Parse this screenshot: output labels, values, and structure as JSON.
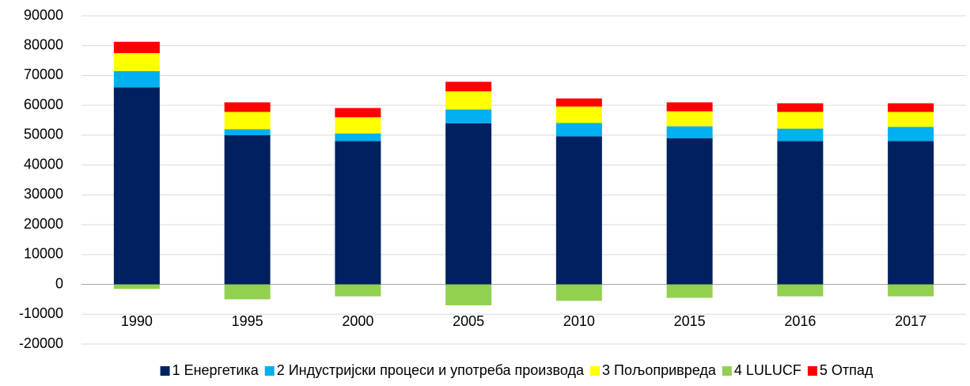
{
  "chart_data": {
    "type": "stacked_bar",
    "categories": [
      "1990",
      "1995",
      "2000",
      "2005",
      "2010",
      "2015",
      "2016",
      "2017"
    ],
    "series": [
      {
        "name": "1 Енергетика",
        "color": "#002060",
        "values": [
          66000,
          50000,
          48000,
          54000,
          49600,
          49000,
          48000,
          48000
        ]
      },
      {
        "name": "2 Индустријски процеси и употреба производа",
        "color": "#00b0f0",
        "values": [
          5500,
          2000,
          2600,
          4600,
          4500,
          4000,
          4200,
          4800
        ]
      },
      {
        "name": "3 Пољопривреда",
        "color": "#ffff00",
        "values": [
          6000,
          5800,
          5400,
          6100,
          5500,
          5000,
          5600,
          5000
        ]
      },
      {
        "name": "4 LULUCF",
        "color": "#92d050",
        "values": [
          -1500,
          -5000,
          -4000,
          -7000,
          -5500,
          -4500,
          -4000,
          -4000
        ]
      },
      {
        "name": "5 Отпад",
        "color": "#ff0000",
        "values": [
          3800,
          3200,
          3100,
          3200,
          2700,
          3000,
          2900,
          2900
        ]
      }
    ],
    "ylim": [
      -20000,
      90000
    ],
    "yticks": [
      -20000,
      -10000,
      0,
      10000,
      20000,
      30000,
      40000,
      50000,
      60000,
      70000,
      80000,
      90000
    ],
    "grid": true,
    "legend": "bottom"
  }
}
